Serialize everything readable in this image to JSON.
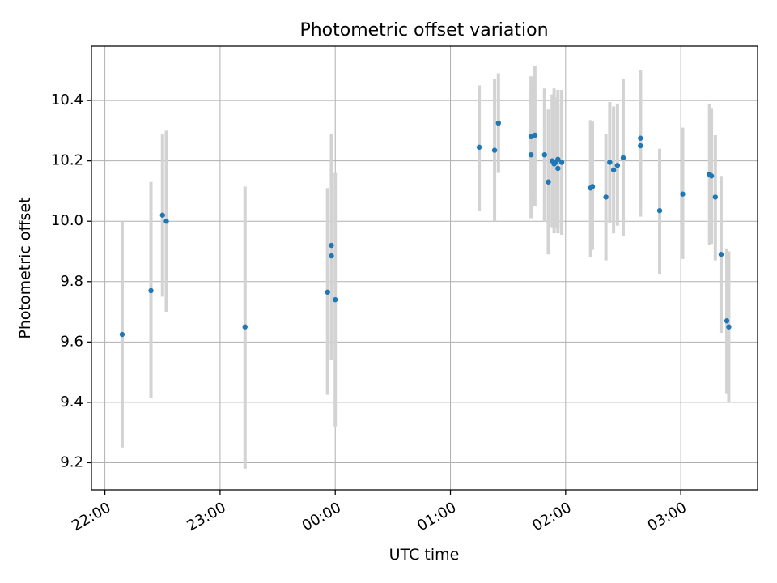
{
  "chart_data": {
    "type": "scatter",
    "title": "Photometric offset variation",
    "xlabel": "UTC time",
    "ylabel": "Photometric offset",
    "x_axis": {
      "type": "time",
      "range": [
        "21:53",
        "03:40"
      ],
      "ticks": [
        "22:00",
        "23:00",
        "00:00",
        "01:00",
        "02:00",
        "03:00"
      ]
    },
    "y_axis": {
      "range": [
        9.11,
        10.58
      ],
      "ticks": [
        "9.2",
        "9.4",
        "9.6",
        "9.8",
        "10.0",
        "10.2",
        "10.4"
      ]
    },
    "grid": true,
    "colors": {
      "point": "#1f77b4",
      "errorbar": "#d3d3d3",
      "grid": "#b0b0b0"
    },
    "series": [
      {
        "points": [
          {
            "x": "22:09",
            "y": 9.625,
            "low": 9.25,
            "high": 10.0
          },
          {
            "x": "22:24",
            "y": 9.77,
            "low": 9.415,
            "high": 10.13
          },
          {
            "x": "22:30",
            "y": 10.02,
            "low": 9.75,
            "high": 10.29
          },
          {
            "x": "22:32",
            "y": 10.0,
            "low": 9.7,
            "high": 10.3
          },
          {
            "x": "23:13",
            "y": 9.65,
            "low": 9.18,
            "high": 10.115
          },
          {
            "x": "23:56",
            "y": 9.765,
            "low": 9.425,
            "high": 10.11
          },
          {
            "x": "23:58",
            "y": 9.92,
            "low": 9.55,
            "high": 10.29
          },
          {
            "x": "23:58",
            "y": 9.885,
            "low": 9.54,
            "high": 10.23
          },
          {
            "x": "00:00",
            "y": 9.74,
            "low": 9.32,
            "high": 10.16
          },
          {
            "x": "01:15",
            "y": 10.245,
            "low": 10.035,
            "high": 10.45
          },
          {
            "x": "01:23",
            "y": 10.235,
            "low": 10.0,
            "high": 10.47
          },
          {
            "x": "01:25",
            "y": 10.325,
            "low": 10.16,
            "high": 10.49
          },
          {
            "x": "01:42",
            "y": 10.22,
            "low": 10.01,
            "high": 10.43
          },
          {
            "x": "01:42",
            "y": 10.28,
            "low": 10.09,
            "high": 10.48
          },
          {
            "x": "01:44",
            "y": 10.285,
            "low": 10.05,
            "high": 10.515
          },
          {
            "x": "01:49",
            "y": 10.22,
            "low": 10.0,
            "high": 10.44
          },
          {
            "x": "01:51",
            "y": 10.13,
            "low": 9.89,
            "high": 10.37
          },
          {
            "x": "01:53",
            "y": 10.2,
            "low": 9.98,
            "high": 10.42
          },
          {
            "x": "01:54",
            "y": 10.19,
            "low": 9.96,
            "high": 10.44
          },
          {
            "x": "01:55",
            "y": 10.195,
            "low": 9.98,
            "high": 10.41
          },
          {
            "x": "01:56",
            "y": 10.205,
            "low": 9.975,
            "high": 10.435
          },
          {
            "x": "01:56",
            "y": 10.175,
            "low": 9.96,
            "high": 10.39
          },
          {
            "x": "01:58",
            "y": 10.195,
            "low": 9.955,
            "high": 10.435
          },
          {
            "x": "02:13",
            "y": 10.11,
            "low": 9.88,
            "high": 10.335
          },
          {
            "x": "02:14",
            "y": 10.115,
            "low": 9.905,
            "high": 10.33
          },
          {
            "x": "02:21",
            "y": 10.08,
            "low": 9.87,
            "high": 10.29
          },
          {
            "x": "02:23",
            "y": 10.195,
            "low": 9.995,
            "high": 10.395
          },
          {
            "x": "02:25",
            "y": 10.17,
            "low": 9.96,
            "high": 10.38
          },
          {
            "x": "02:27",
            "y": 10.185,
            "low": 9.985,
            "high": 10.39
          },
          {
            "x": "02:30",
            "y": 10.21,
            "low": 9.95,
            "high": 10.47
          },
          {
            "x": "02:39",
            "y": 10.275,
            "low": 10.05,
            "high": 10.5
          },
          {
            "x": "02:39",
            "y": 10.25,
            "low": 10.015,
            "high": 10.485
          },
          {
            "x": "02:49",
            "y": 10.035,
            "low": 9.825,
            "high": 10.24
          },
          {
            "x": "03:01",
            "y": 10.09,
            "low": 9.875,
            "high": 10.31
          },
          {
            "x": "03:15",
            "y": 10.155,
            "low": 9.92,
            "high": 10.39
          },
          {
            "x": "03:16",
            "y": 10.15,
            "low": 9.925,
            "high": 10.375
          },
          {
            "x": "03:18",
            "y": 10.08,
            "low": 9.87,
            "high": 10.285
          },
          {
            "x": "03:21",
            "y": 9.89,
            "low": 9.63,
            "high": 10.15
          },
          {
            "x": "03:24",
            "y": 9.67,
            "low": 9.43,
            "high": 9.91
          },
          {
            "x": "03:25",
            "y": 9.65,
            "low": 9.4,
            "high": 9.9
          }
        ]
      }
    ]
  }
}
